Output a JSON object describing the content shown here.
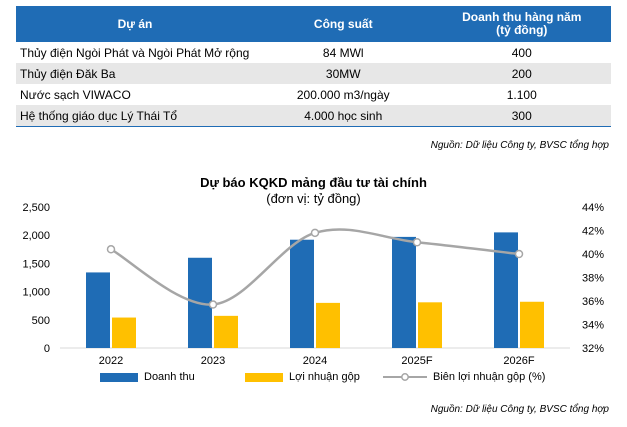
{
  "table": {
    "headers": [
      "Dự án",
      "Công suất",
      "Doanh thu hàng năm",
      "(tỷ đồng)"
    ],
    "rows": [
      [
        "Thủy điện Ngòi Phát và Ngòi Phát Mở rộng",
        "84 MWl",
        "400"
      ],
      [
        "Thủy điện Đăk Ba",
        "30MW",
        "200"
      ],
      [
        "Nước sạch VIWACO",
        "200.000 m3/ngày",
        "1.100"
      ],
      [
        "Hệ thống giáo dục Lý Thái Tổ",
        "4.000 học sinh",
        "300"
      ]
    ]
  },
  "source_top": "Nguồn: Dữ liệu Công ty, BVSC tổng hợp",
  "source_bottom": "Nguồn: Dữ liệu Công ty, BVSC tổng hợp",
  "chart_data": {
    "type": "bar",
    "title": "Dự báo KQKD mảng đầu tư tài chính",
    "subtitle": "(đơn vị: tỷ đồng)",
    "categories": [
      "2022",
      "2023",
      "2024",
      "2025F",
      "2026F"
    ],
    "series": [
      {
        "name": "Doanh thu",
        "type": "bar",
        "axis": "left",
        "color": "#1f6cb5",
        "values": [
          1340,
          1600,
          1920,
          1970,
          2050
        ]
      },
      {
        "name": "Lợi nhuận gộp",
        "type": "bar",
        "axis": "left",
        "color": "#ffc000",
        "values": [
          540,
          570,
          800,
          810,
          820
        ]
      },
      {
        "name": "Biên lợi nhuận gộp (%)",
        "type": "line",
        "axis": "right",
        "color": "#a6a6a6",
        "values": [
          40.4,
          35.7,
          41.8,
          41.0,
          40.0
        ]
      }
    ],
    "y_left": {
      "min": 0,
      "max": 2500,
      "step": 500,
      "tick_labels": [
        "0",
        "500",
        "1,000",
        "1,500",
        "2,000",
        "2,500"
      ]
    },
    "y_right": {
      "min": 32,
      "max": 44,
      "step": 2,
      "tick_labels": [
        "32%",
        "34%",
        "36%",
        "38%",
        "40%",
        "42%",
        "44%"
      ]
    },
    "grid": false,
    "legend_position": "bottom"
  }
}
